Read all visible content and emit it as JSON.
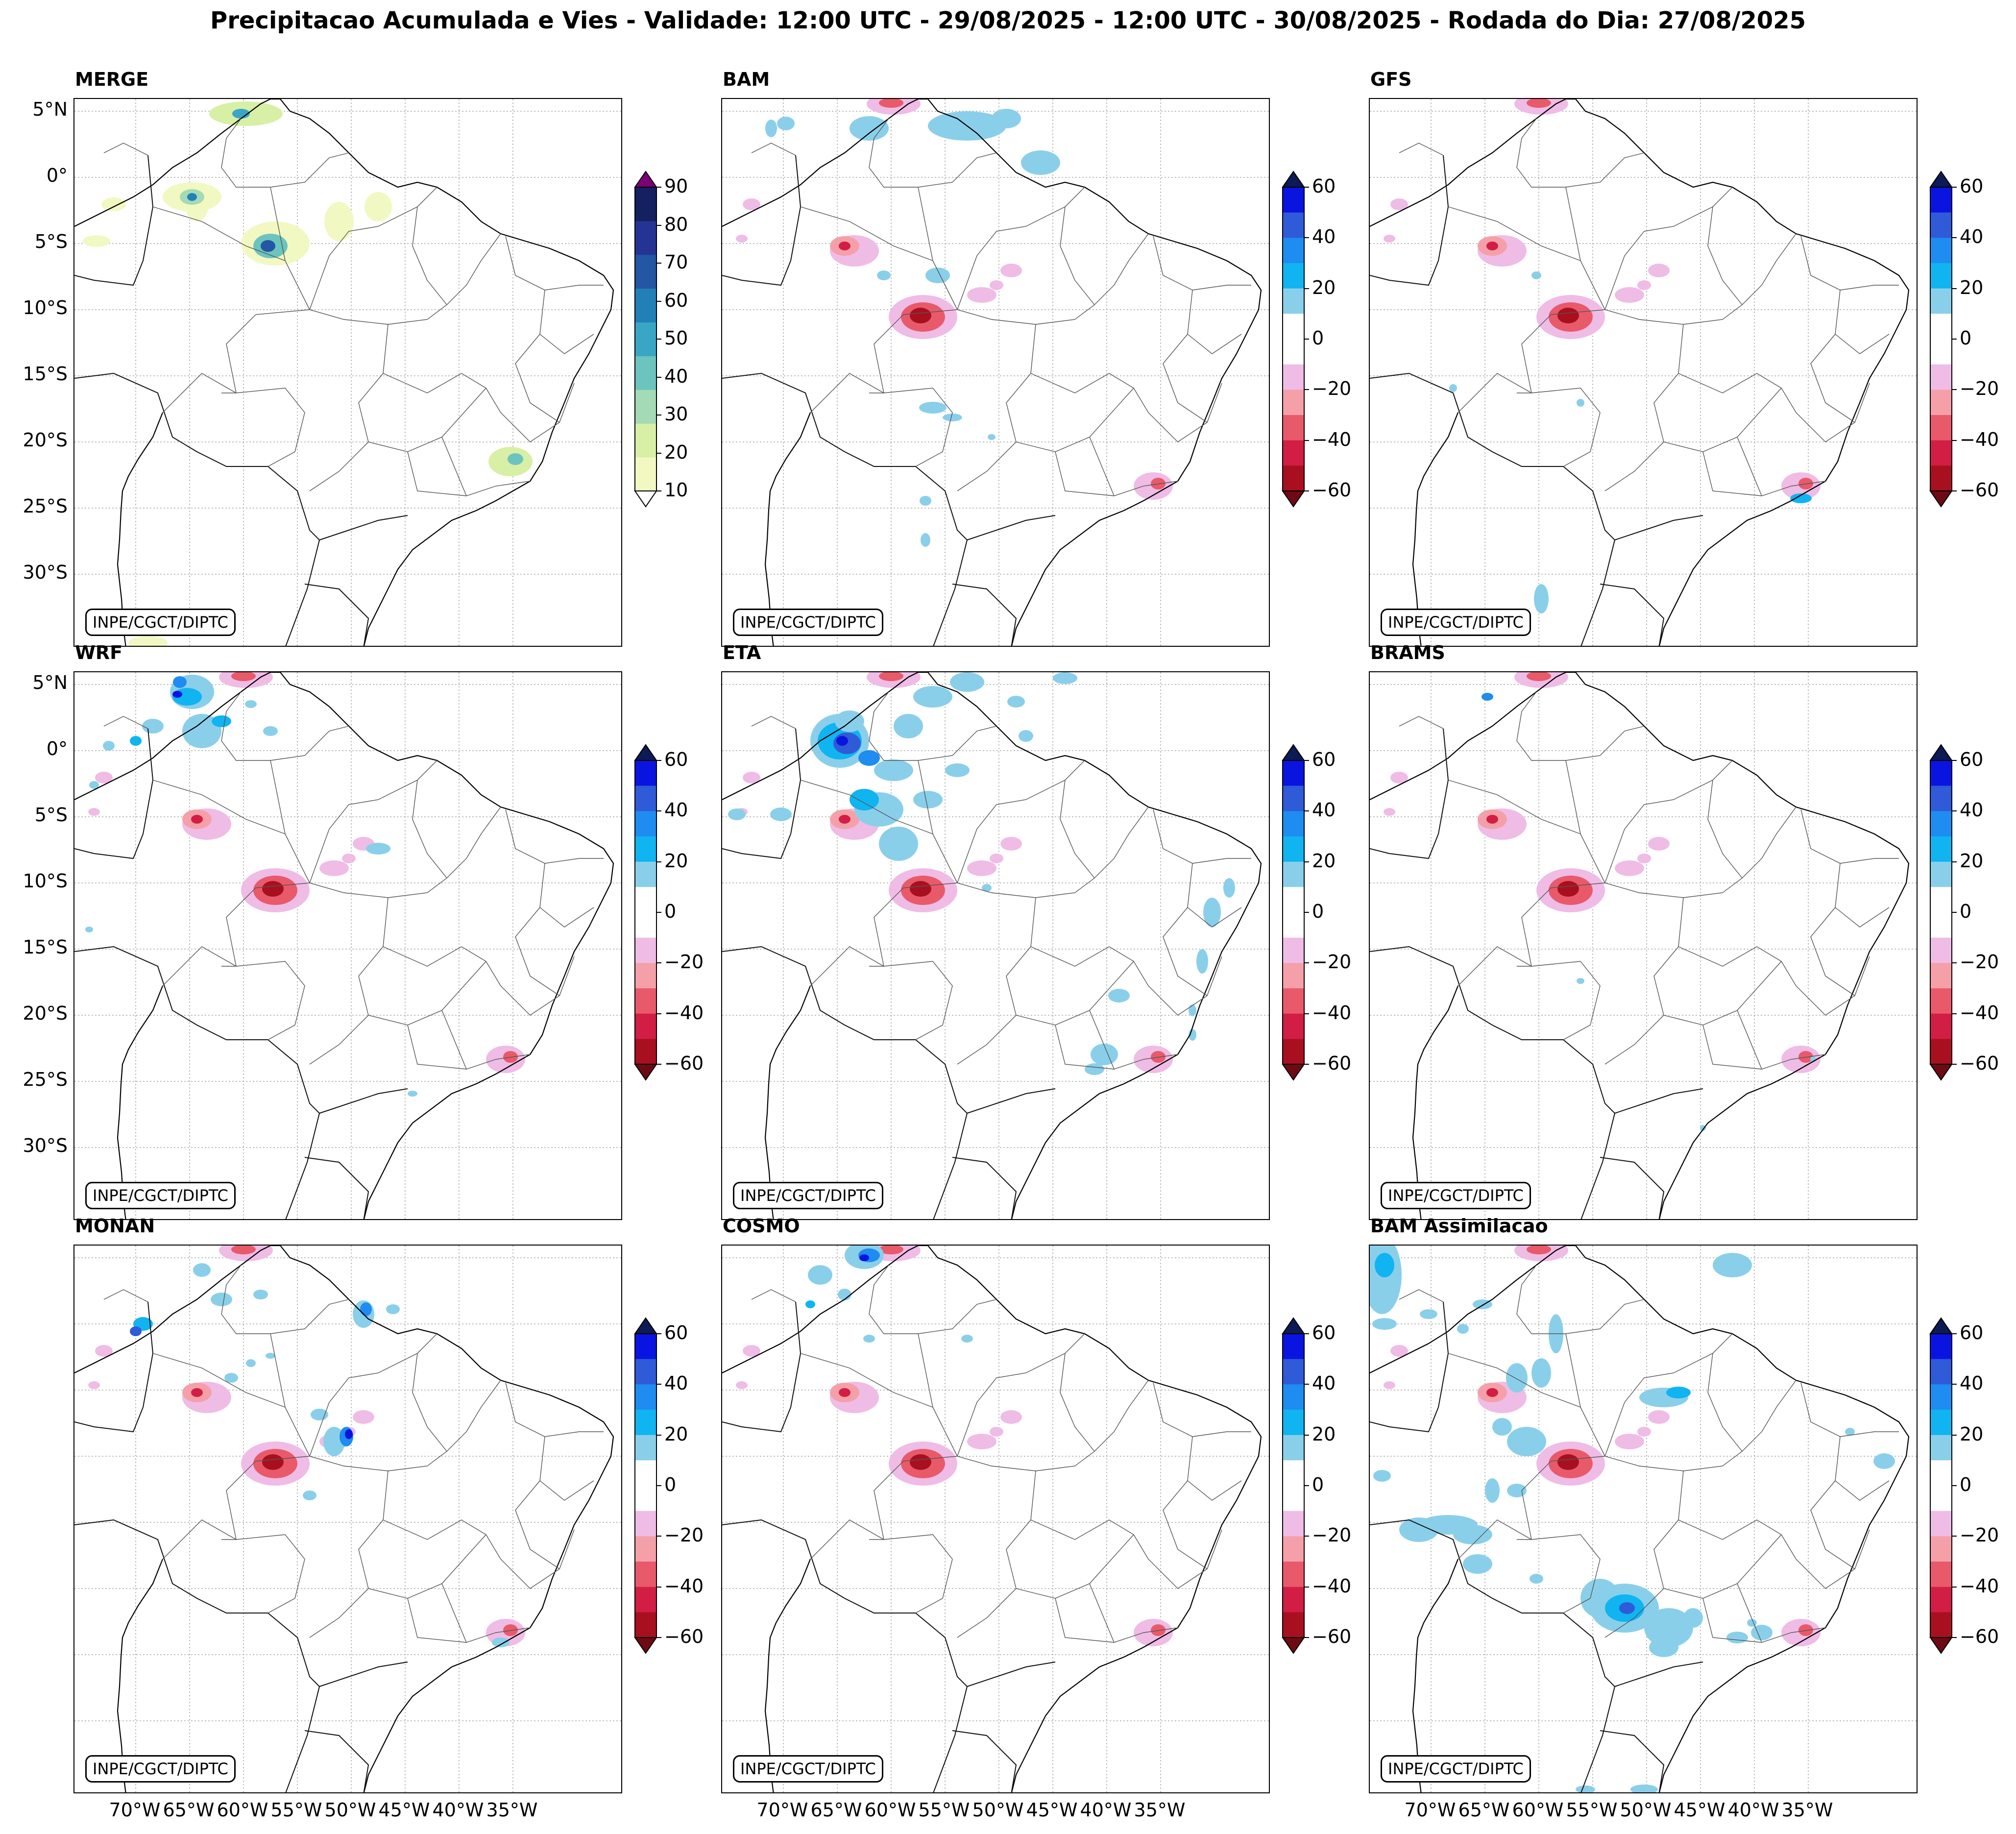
{
  "title": "Precipitacao Acumulada e Vies - Validade: 12:00 UTC - 29/08/2025 - 12:00 UTC - 30/08/2025 - Rodada do Dia: 27/08/2025",
  "credit": "INPE/CGCT/DIPTC",
  "lat_labels": [
    "5°N",
    "0°",
    "5°S",
    "10°S",
    "15°S",
    "20°S",
    "25°S",
    "30°S"
  ],
  "lon_labels": [
    "70°W",
    "65°W",
    "60°W",
    "55°W",
    "50°W",
    "45°W",
    "40°W",
    "35°W"
  ],
  "merge_colorbar": {
    "ticks": [
      "10",
      "20",
      "30",
      "40",
      "50",
      "60",
      "70",
      "80",
      "90"
    ],
    "colors": [
      "#f2f8c2",
      "#d8efa6",
      "#a4dab5",
      "#6cc4be",
      "#39a6c6",
      "#2280b9",
      "#2356a3",
      "#253494",
      "#152060"
    ],
    "under_color": "#ffffff",
    "over_color": "#7a0177"
  },
  "bias_colorbar": {
    "ticks": [
      "60",
      "40",
      "20",
      "0",
      "−20",
      "−40",
      "−60"
    ],
    "colors": [
      "#0a14e0",
      "#2f5ad8",
      "#1e8cf0",
      "#10b4f0",
      "#8acfea",
      "#ffffff",
      "#ffffff",
      "#efbce6",
      "#f5a0a8",
      "#e85a6a",
      "#d21e44",
      "#a81020"
    ],
    "over_color": "#0c1a55",
    "under_color": "#6e0a14"
  },
  "panels": [
    {
      "name": "MERGE",
      "type": "merge"
    },
    {
      "name": "BAM",
      "type": "bias"
    },
    {
      "name": "GFS",
      "type": "bias"
    },
    {
      "name": "WRF",
      "type": "bias"
    },
    {
      "name": "ETA",
      "type": "bias"
    },
    {
      "name": "BRAMS",
      "type": "bias"
    },
    {
      "name": "MONAN",
      "type": "bias"
    },
    {
      "name": "COSMO",
      "type": "bias"
    },
    {
      "name": "BAM Assimilacao",
      "type": "bias"
    }
  ]
}
